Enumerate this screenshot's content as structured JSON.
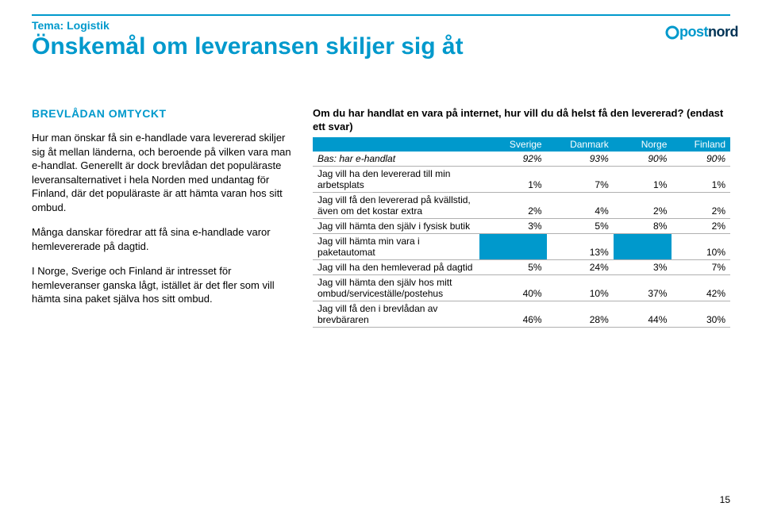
{
  "header": {
    "tema": "Tema: Logistik",
    "title": "Önskemål om leveransen skiljer sig åt",
    "logo_post": "post",
    "logo_nord": "nord"
  },
  "left": {
    "subhead": "BREVLÅDAN OMTYCKT",
    "p1": "Hur man önskar få sin e-handlade vara levererad skiljer sig åt mellan länderna, och beroende på vilken vara man e-handlat. Generellt är dock brevlådan det populäraste leveransalternativet i hela Norden med undantag för Finland, där det populäraste är att hämta varan hos sitt ombud.",
    "p2": "Många danskar föredrar att få sina e-handlade varor hemlevererade på dagtid.",
    "p3": "I Norge, Sverige och Finland är intresset för hemleveranser ganska lågt, istället är det fler som vill hämta sina paket själva hos sitt ombud."
  },
  "right": {
    "question": "Om du har handlat en vara på internet, hur vill du då helst få den levererad? (endast ett svar)",
    "columns": [
      "Sverige",
      "Danmark",
      "Norge",
      "Finland"
    ],
    "rows": [
      {
        "label": "Bas: har e-handlat",
        "vals": [
          "92%",
          "93%",
          "90%",
          "90%"
        ]
      },
      {
        "label": "Jag vill ha den levererad till min arbetsplats",
        "vals": [
          "1%",
          "7%",
          "1%",
          "1%"
        ]
      },
      {
        "label": "Jag vill få den levererad på kvällstid, även om det kostar extra",
        "vals": [
          "2%",
          "4%",
          "2%",
          "2%"
        ]
      },
      {
        "label": "Jag vill hämta den själv i fysisk butik",
        "vals": [
          "3%",
          "5%",
          "8%",
          "2%"
        ]
      },
      {
        "label": "Jag vill hämta min vara i paketautomat",
        "vals": [
          "",
          "13%",
          "",
          "10%"
        ]
      },
      {
        "label": "Jag vill ha den hemleverad på dagtid",
        "vals": [
          "5%",
          "24%",
          "3%",
          "7%"
        ]
      },
      {
        "label": "Jag vill hämta den själv hos mitt ombud/serviceställe/postehus",
        "vals": [
          "40%",
          "10%",
          "37%",
          "42%"
        ]
      },
      {
        "label": "Jag vill få den i brevlådan av brevbäraren",
        "vals": [
          "46%",
          "28%",
          "44%",
          "30%"
        ]
      }
    ]
  },
  "styling": {
    "accent_color": "#0099cc",
    "header_bg": "#0099cc",
    "header_text": "#ffffff",
    "row_border": "#b0b0b0",
    "body_font_size": 13,
    "table_font_size": 12,
    "title_font_size": 30,
    "col_widths": [
      "auto",
      "16%",
      "16%",
      "14%",
      "14%"
    ]
  },
  "page_number": "15"
}
